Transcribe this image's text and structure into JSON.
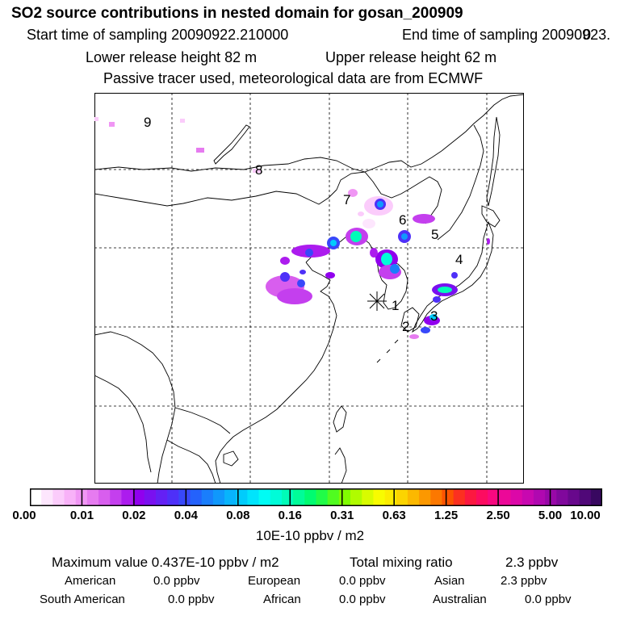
{
  "header": {
    "title": "SO2 source contributions in nested domain for gosan_200909",
    "start_label": "Start time of sampling 20090922.210000",
    "end_label": "End time of sampling 20090923.",
    "end_suffix": "0",
    "lower_release": "Lower release height   82 m",
    "upper_release": "Upper release height   62 m",
    "tracer_note": "Passive tracer used, meteorological data are from ECMWF"
  },
  "map": {
    "site_marker": "receptor-asterisk",
    "region_labels": [
      "9",
      "8",
      "7",
      "6",
      "5",
      "4",
      "1",
      "3",
      "2"
    ]
  },
  "colorbar": {
    "unit": "10E-10 ppbv / m2",
    "ticks": [
      "0.00",
      "0.01",
      "0.02",
      "0.04",
      "0.08",
      "0.16",
      "0.31",
      "0.63",
      "1.25",
      "2.50",
      "5.00",
      "10.00"
    ],
    "colors": [
      "#ffffff",
      "#fde6fd",
      "#fbccfb",
      "#f8b2f8",
      "#f096f4",
      "#e67bf0",
      "#d85eee",
      "#c43fee",
      "#ac1cee",
      "#9100ee",
      "#7a10f0",
      "#6420f4",
      "#4e30f8",
      "#3848fa",
      "#2462fc",
      "#1a7efc",
      "#1098fc",
      "#08b4fc",
      "#00ccfc",
      "#00e4fc",
      "#00fcf4",
      "#00fcd8",
      "#00fcb8",
      "#00fc98",
      "#00fc70",
      "#20fc48",
      "#50fc20",
      "#80fc00",
      "#b0fc00",
      "#d8fc00",
      "#f8fc00",
      "#fcec00",
      "#fcd400",
      "#fcb800",
      "#fc9800",
      "#fc7800",
      "#fc5400",
      "#fc3020",
      "#fc1840",
      "#fc0c60",
      "#f80880",
      "#ec0898",
      "#dc08a8",
      "#c808b0",
      "#b008b0",
      "#9808a8",
      "#80089c",
      "#68088c",
      "#500878",
      "#380860"
    ]
  },
  "summary": {
    "max_label": "Maximum value  0.437E-10 ppbv / m2",
    "total_label": "Total mixing ratio",
    "total_value": "2.3 ppbv"
  },
  "regions": [
    {
      "name": "American",
      "value": "0.0 ppbv"
    },
    {
      "name": "European",
      "value": "0.0 ppbv"
    },
    {
      "name": "Asian",
      "value": "2.3 ppbv"
    },
    {
      "name": "South American",
      "value": "0.0 ppbv"
    },
    {
      "name": "African",
      "value": "0.0 ppbv"
    },
    {
      "name": "Australian",
      "value": "0.0 ppbv"
    }
  ]
}
